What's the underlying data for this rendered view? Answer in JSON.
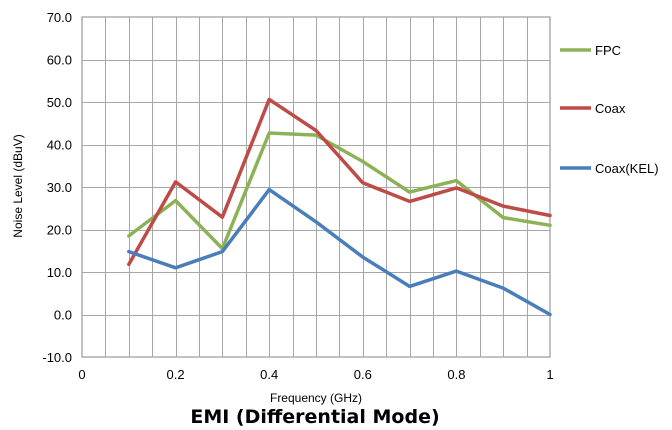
{
  "chart_data": {
    "type": "line",
    "title": "EMI (Differential Mode)",
    "xlabel": "Frequency (GHz)",
    "ylabel": "Noise Level (dBuV)",
    "xlim": [
      0,
      1
    ],
    "ylim": [
      -10,
      70
    ],
    "xticks": [
      0,
      0.2,
      0.4,
      0.6,
      0.8,
      1
    ],
    "xtick_labels": [
      "0",
      "0.2",
      "0.4",
      "0.6",
      "0.8",
      "1"
    ],
    "yticks": [
      -10,
      0,
      10,
      20,
      30,
      40,
      50,
      60,
      70
    ],
    "ytick_labels": [
      "-10.0",
      "0.0",
      "10.0",
      "20.0",
      "30.0",
      "40.0",
      "50.0",
      "60.0",
      "70.0"
    ],
    "grid": true,
    "legend_position": "right",
    "x": [
      0.1,
      0.2,
      0.3,
      0.4,
      0.5,
      0.6,
      0.7,
      0.8,
      0.9,
      1.0
    ],
    "series": [
      {
        "name": "FPC",
        "color": "#8DB255",
        "values": [
          18.5,
          26.8,
          15.5,
          42.7,
          42.2,
          36.0,
          28.8,
          31.5,
          22.8,
          21.0
        ]
      },
      {
        "name": "Coax",
        "color": "#BE4B48",
        "values": [
          11.8,
          31.2,
          22.9,
          50.6,
          43.3,
          31.0,
          26.6,
          29.8,
          25.5,
          23.3
        ]
      },
      {
        "name": "Coax(KEL)",
        "color": "#4A7EBB",
        "values": [
          14.8,
          11.0,
          14.8,
          29.4,
          21.8,
          13.5,
          6.6,
          10.2,
          6.2,
          0.0
        ]
      }
    ]
  }
}
